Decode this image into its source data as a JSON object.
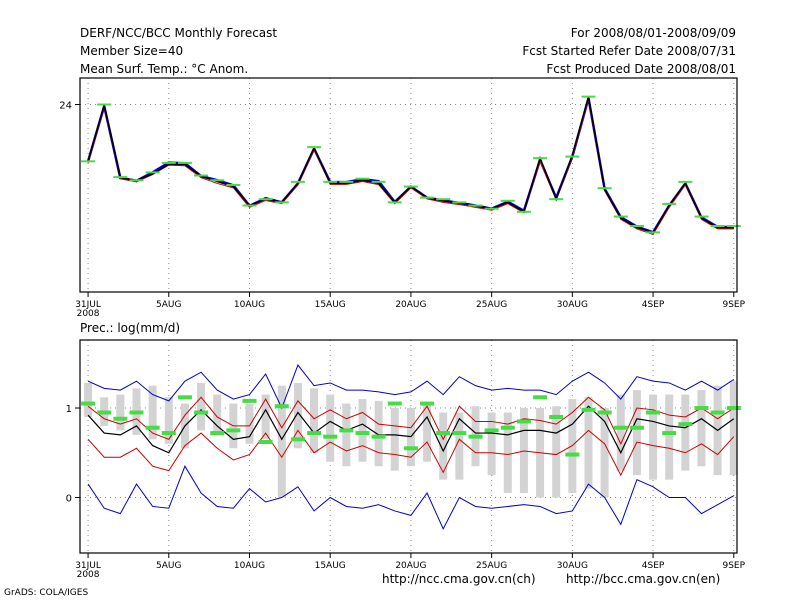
{
  "header": {
    "title": "DERF/NCC/BCC Monthly Forecast",
    "member_size": "Member Size=40",
    "variable": "Mean Surf. Temp.: °C Anom.",
    "period": "For 2008/08/01-2008/09/09",
    "refer_date": "Fcst Started Refer Date 2008/07/31",
    "produced_date": "Fcst Produced Date 2008/08/01"
  },
  "footer": {
    "url_ncc": "http://ncc.cma.gov.cn(ch)",
    "url_bcc": "http://bcc.cma.gov.cn(en)",
    "grads_credit": "GrADS: COLA/IGES"
  },
  "colors": {
    "ensemble_mean": "#000000",
    "range_upper": "#0000cc",
    "range_lower": "#cc0000",
    "member_marker": "#44dd44",
    "spread_bar": "#d3d3d3",
    "grid": "#888888"
  },
  "chart_data": [
    {
      "type": "line",
      "title": "Mean Surf. Temp.: °C Anom.",
      "x_tick_labels": [
        "31JUL",
        "5AUG",
        "10AUG",
        "15AUG",
        "20AUG",
        "25AUG",
        "30AUG",
        "4SEP",
        "9SEP"
      ],
      "x_tick_days": [
        0,
        5,
        10,
        15,
        20,
        25,
        30,
        35,
        40
      ],
      "x_year_label": "2008",
      "xlim": [
        -0.5,
        40.2
      ],
      "ylim": [
        18.06,
        24.84
      ],
      "y_ticks": [
        24
      ],
      "grid": true,
      "x": [
        0,
        1,
        2,
        3,
        4,
        5,
        6,
        7,
        8,
        9,
        10,
        11,
        12,
        13,
        14,
        15,
        16,
        17,
        18,
        19,
        20,
        21,
        22,
        23,
        24,
        25,
        26,
        27,
        28,
        29,
        30,
        31,
        32,
        33,
        34,
        35,
        36,
        37,
        38,
        39,
        40
      ],
      "series": [
        {
          "name": "ensemble mean",
          "values": [
            22.2,
            23.98,
            21.69,
            21.6,
            21.8,
            22.1,
            22.1,
            21.73,
            21.56,
            21.4,
            20.8,
            21.0,
            20.9,
            21.5,
            22.63,
            21.5,
            21.5,
            21.6,
            21.5,
            20.9,
            21.4,
            21.05,
            20.95,
            20.9,
            20.8,
            20.7,
            20.9,
            20.6,
            22.3,
            21.0,
            22.4,
            24.24,
            21.3,
            20.4,
            20.1,
            19.94,
            20.8,
            21.5,
            20.4,
            20.1,
            20.1
          ]
        },
        {
          "name": "upper",
          "values": [
            22.2,
            23.95,
            21.67,
            21.58,
            21.85,
            22.16,
            22.14,
            21.73,
            21.6,
            21.44,
            20.79,
            21.03,
            20.9,
            21.5,
            22.6,
            21.54,
            21.54,
            21.63,
            21.57,
            20.91,
            21.4,
            21.05,
            20.96,
            20.88,
            20.8,
            20.7,
            20.92,
            20.63,
            22.25,
            21.04,
            22.35,
            24.2,
            21.33,
            20.43,
            20.13,
            19.95,
            20.8,
            21.5,
            20.42,
            20.12,
            20.12
          ]
        },
        {
          "name": "lower",
          "values": [
            22.15,
            23.92,
            21.65,
            21.55,
            21.78,
            22.08,
            22.06,
            21.68,
            21.5,
            21.36,
            20.74,
            20.96,
            20.86,
            21.45,
            22.57,
            21.47,
            21.47,
            21.56,
            21.46,
            20.86,
            21.36,
            21.01,
            20.9,
            20.83,
            20.74,
            20.65,
            20.86,
            20.57,
            22.2,
            20.98,
            22.33,
            24.15,
            21.27,
            20.36,
            20.06,
            19.88,
            20.74,
            21.45,
            20.36,
            20.06,
            20.06
          ]
        },
        {
          "name": "member marker",
          "values": [
            22.2,
            24.0,
            21.7,
            21.6,
            21.85,
            22.15,
            22.15,
            21.75,
            21.6,
            21.45,
            20.8,
            21.0,
            20.9,
            21.55,
            22.65,
            21.55,
            21.55,
            21.65,
            21.55,
            20.9,
            21.4,
            21.05,
            21.0,
            20.9,
            20.8,
            20.7,
            20.95,
            20.6,
            22.3,
            21.0,
            22.35,
            24.25,
            21.35,
            20.45,
            20.15,
            19.95,
            20.85,
            21.55,
            20.45,
            20.15,
            20.15
          ]
        }
      ]
    },
    {
      "type": "line",
      "title": "Prec.: log(mm/d)",
      "x_tick_labels": [
        "31JUL",
        "5AUG",
        "10AUG",
        "15AUG",
        "20AUG",
        "25AUG",
        "30AUG",
        "4SEP",
        "9SEP"
      ],
      "x_tick_days": [
        0,
        5,
        10,
        15,
        20,
        25,
        30,
        35,
        40
      ],
      "x_year_label": "2008",
      "xlim": [
        -0.5,
        40.2
      ],
      "ylim": [
        -0.62,
        1.76
      ],
      "y_ticks": [
        0,
        1
      ],
      "grid": true,
      "x": [
        0,
        1,
        2,
        3,
        4,
        5,
        6,
        7,
        8,
        9,
        10,
        11,
        12,
        13,
        14,
        15,
        16,
        17,
        18,
        19,
        20,
        21,
        22,
        23,
        24,
        25,
        26,
        27,
        28,
        29,
        30,
        31,
        32,
        33,
        34,
        35,
        36,
        37,
        38,
        39,
        40
      ],
      "spread_bars": {
        "low": [
          0.9,
          0.8,
          0.75,
          0.7,
          0.65,
          0.6,
          0.55,
          0.75,
          0.7,
          0.55,
          0.6,
          0.65,
          0.0,
          0.55,
          0.5,
          0.4,
          0.35,
          0.4,
          0.35,
          0.3,
          0.35,
          0.4,
          0.2,
          0.2,
          0.35,
          0.25,
          0.05,
          0.05,
          0.0,
          0.0,
          0.05,
          0.1,
          0.0,
          0.3,
          0.25,
          0.2,
          0.2,
          0.3,
          0.35,
          0.25,
          0.25
        ],
        "high": [
          1.28,
          1.12,
          1.15,
          1.22,
          1.25,
          1.12,
          1.05,
          1.28,
          1.15,
          1.05,
          1.05,
          1.15,
          1.25,
          1.28,
          1.22,
          1.15,
          1.05,
          1.1,
          1.08,
          1.0,
          1.0,
          1.05,
          0.95,
          0.95,
          1.02,
          0.95,
          0.95,
          1.0,
          1.0,
          1.02,
          1.1,
          1.12,
          1.0,
          1.15,
          1.2,
          1.15,
          1.15,
          1.15,
          1.2,
          1.25,
          1.3
        ]
      },
      "series": [
        {
          "name": "ensemble mean",
          "values": [
            0.92,
            0.72,
            0.7,
            0.8,
            0.58,
            0.5,
            0.8,
            0.98,
            0.8,
            0.65,
            0.68,
            0.98,
            0.65,
            0.95,
            0.72,
            0.85,
            0.75,
            0.82,
            0.7,
            0.7,
            0.68,
            0.9,
            0.52,
            0.88,
            0.72,
            0.72,
            0.7,
            0.75,
            0.75,
            0.72,
            0.82,
            1.02,
            0.85,
            0.5,
            0.88,
            0.85,
            0.8,
            0.78,
            0.88,
            0.75,
            0.88
          ]
        },
        {
          "name": "upper outer",
          "values": [
            0.15,
            -0.12,
            -0.18,
            0.15,
            -0.1,
            -0.12,
            0.35,
            0.05,
            -0.1,
            -0.12,
            0.1,
            -0.05,
            0.0,
            0.12,
            -0.15,
            0.0,
            -0.1,
            -0.12,
            -0.08,
            -0.15,
            -0.2,
            0.05,
            -0.35,
            0.0,
            -0.1,
            -0.12,
            -0.1,
            -0.08,
            -0.1,
            -0.18,
            -0.15,
            0.15,
            0.0,
            -0.3,
            0.2,
            0.12,
            0.0,
            0.0,
            -0.18,
            -0.08,
            0.02
          ]
        },
        {
          "name": "lower outer",
          "values": [
            1.3,
            1.22,
            1.2,
            1.3,
            1.15,
            1.08,
            1.3,
            1.4,
            1.2,
            1.1,
            1.15,
            1.38,
            1.0,
            1.48,
            1.25,
            1.28,
            1.2,
            1.2,
            1.18,
            1.15,
            1.18,
            1.3,
            1.15,
            1.35,
            1.25,
            1.2,
            1.22,
            1.2,
            1.2,
            1.15,
            1.3,
            1.4,
            1.28,
            1.1,
            1.35,
            1.3,
            1.28,
            1.2,
            1.3,
            1.2,
            1.32
          ]
        },
        {
          "name": "red upper",
          "values": [
            1.02,
            0.88,
            0.82,
            0.88,
            0.72,
            0.65,
            0.92,
            1.12,
            0.9,
            0.8,
            0.8,
            1.1,
            0.78,
            1.08,
            0.88,
            0.98,
            0.88,
            0.95,
            0.82,
            0.8,
            0.78,
            1.02,
            0.65,
            1.02,
            0.85,
            0.85,
            0.82,
            0.88,
            0.86,
            0.82,
            0.95,
            1.12,
            0.98,
            0.6,
            1.0,
            0.98,
            0.92,
            0.9,
            1.0,
            0.88,
            1.0
          ]
        },
        {
          "name": "red lower",
          "values": [
            0.65,
            0.45,
            0.45,
            0.55,
            0.35,
            0.3,
            0.58,
            0.72,
            0.55,
            0.42,
            0.48,
            0.72,
            0.45,
            0.75,
            0.5,
            0.62,
            0.52,
            0.58,
            0.5,
            0.48,
            0.45,
            0.62,
            0.28,
            0.65,
            0.5,
            0.5,
            0.48,
            0.52,
            0.5,
            0.48,
            0.58,
            0.75,
            0.6,
            0.25,
            0.62,
            0.58,
            0.55,
            0.5,
            0.6,
            0.48,
            0.68
          ]
        },
        {
          "name": "member marker",
          "values": [
            1.05,
            0.95,
            0.88,
            0.95,
            0.78,
            0.72,
            1.12,
            0.95,
            0.72,
            0.75,
            1.08,
            0.62,
            1.02,
            0.65,
            0.72,
            0.68,
            0.75,
            0.72,
            0.68,
            1.05,
            0.55,
            1.05,
            0.72,
            0.72,
            0.68,
            0.75,
            0.78,
            0.85,
            1.12,
            0.9,
            0.48,
            0.98,
            0.95,
            0.78,
            0.78,
            0.95,
            0.72,
            0.82,
            1.0,
            0.95,
            1.0
          ]
        }
      ]
    }
  ]
}
